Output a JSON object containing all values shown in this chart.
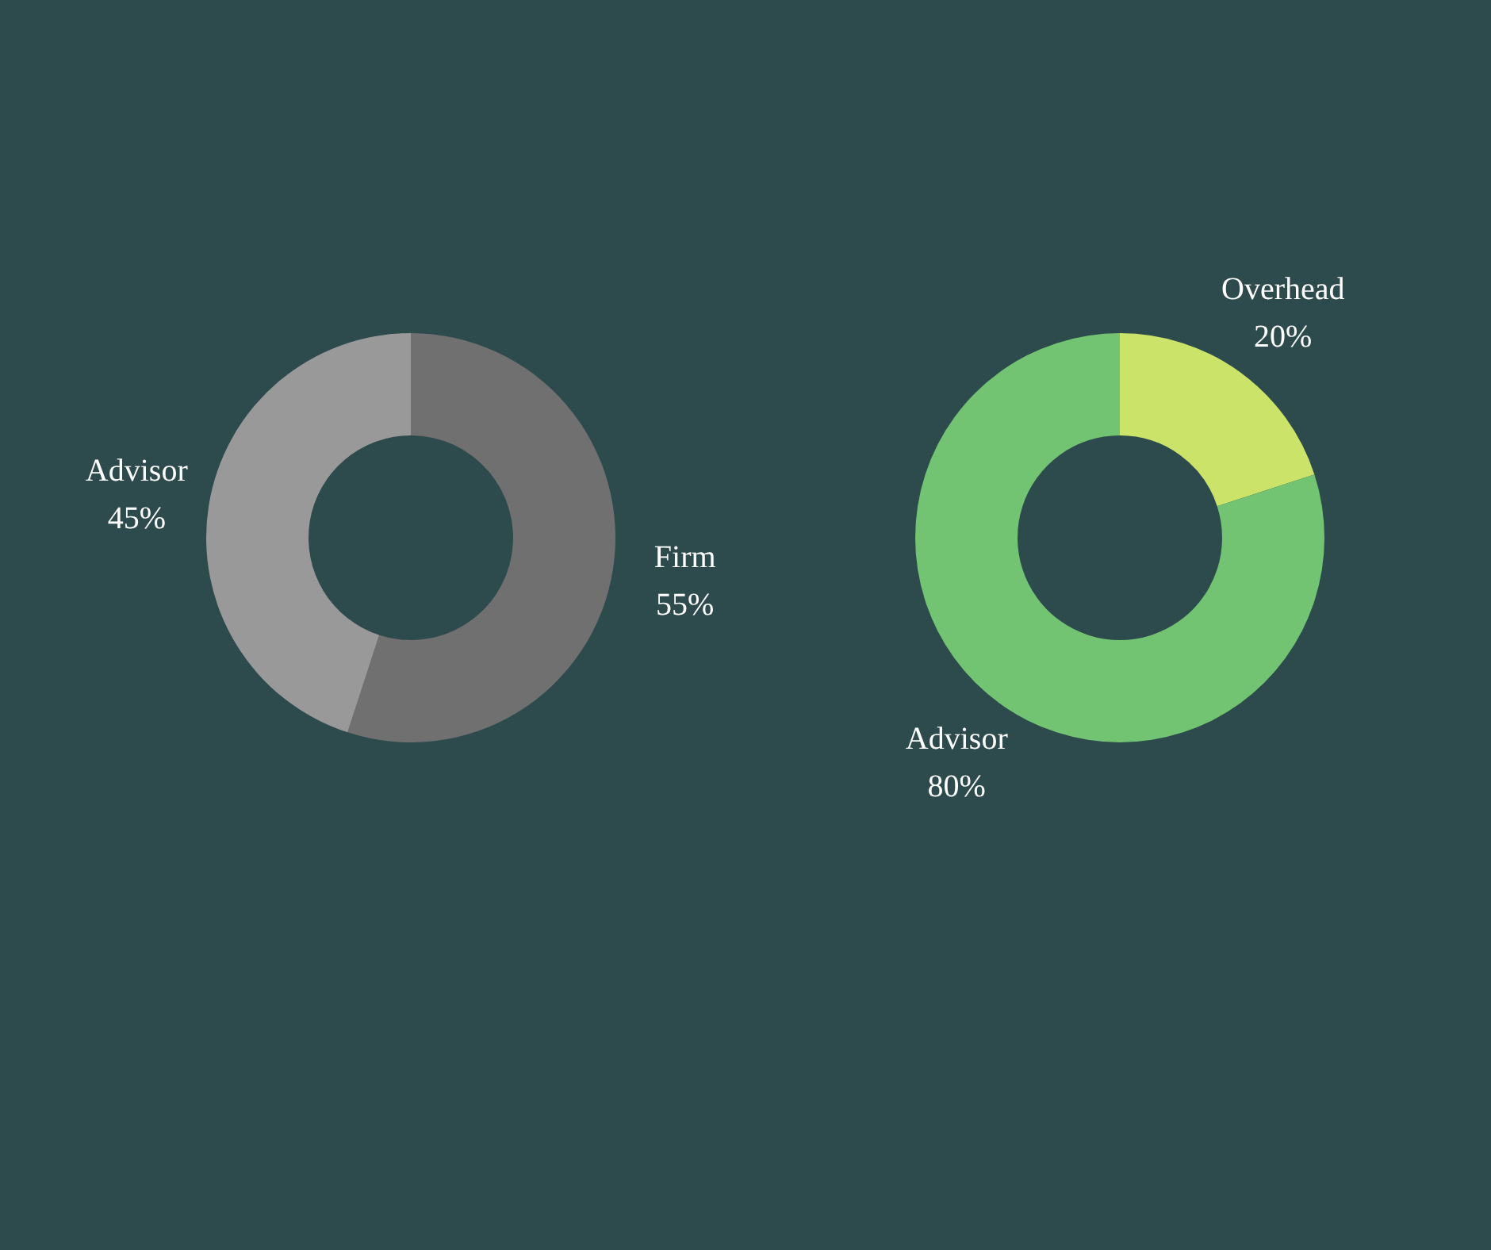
{
  "chart_data": [
    {
      "type": "donut",
      "categories": [
        "Firm",
        "Advisor"
      ],
      "values": [
        55,
        45
      ],
      "colors": [
        "#707070",
        "#999999"
      ],
      "value_labels": [
        "55%",
        "45%"
      ]
    },
    {
      "type": "donut",
      "categories": [
        "Overhead",
        "Advisor"
      ],
      "values": [
        20,
        80
      ],
      "colors": [
        "#cce36a",
        "#72c472"
      ],
      "value_labels": [
        "20%",
        "80%"
      ]
    }
  ]
}
